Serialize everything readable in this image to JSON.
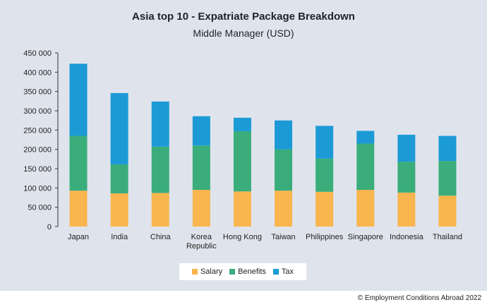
{
  "chart_data": {
    "type": "bar",
    "stacked": true,
    "title": "Asia top 10 - Expatriate Package Breakdown",
    "subtitle": "Middle Manager (USD)",
    "xlabel": "",
    "ylabel": "",
    "ylim": [
      0,
      450000
    ],
    "yticks": [
      0,
      50000,
      100000,
      150000,
      200000,
      250000,
      300000,
      350000,
      400000,
      450000
    ],
    "ytick_labels": [
      "0",
      "50 000",
      "100 000",
      "150 000",
      "200 000",
      "250 000",
      "300 000",
      "350 000",
      "400 000",
      "450 000"
    ],
    "categories": [
      "Japan",
      "India",
      "China",
      "Korea Republic",
      "Hong Kong",
      "Taiwan",
      "Philippines",
      "Singapore",
      "Indonesia",
      "Thailand"
    ],
    "series": [
      {
        "name": "Salary",
        "color": "#f9b54e",
        "values": [
          93000,
          86000,
          87000,
          95000,
          91000,
          93000,
          90000,
          95000,
          88000,
          80000
        ]
      },
      {
        "name": "Benefits",
        "color": "#3aad7b",
        "values": [
          142000,
          75000,
          120000,
          115000,
          156000,
          107000,
          86000,
          120000,
          80000,
          90000
        ]
      },
      {
        "name": "Tax",
        "color": "#1c9ad6",
        "values": [
          187000,
          185000,
          117000,
          76000,
          35000,
          75000,
          85000,
          33000,
          70000,
          65000
        ]
      }
    ],
    "grid": false,
    "legend_position": "bottom"
  },
  "footer": {
    "copyright": "© Employment Conditions Abroad 2022"
  }
}
